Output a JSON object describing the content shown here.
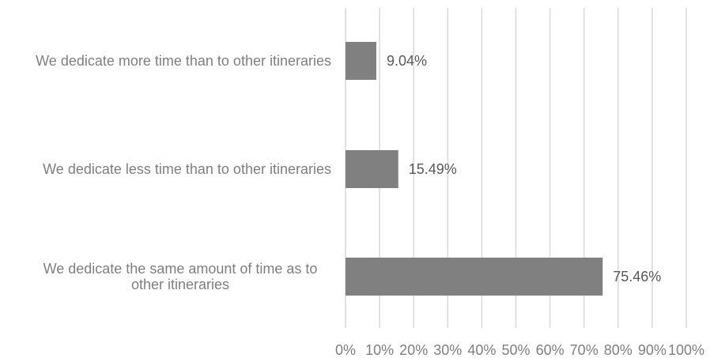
{
  "chart_data": {
    "type": "bar",
    "orientation": "horizontal",
    "categories": [
      "We dedicate more time than to other itineraries",
      "We dedicate less time than to other itineraries",
      "We dedicate the same amount of time as to other itineraries"
    ],
    "category_lines": [
      [
        "We dedicate more time than to other itineraries"
      ],
      [
        "We dedicate less time than to other itineraries"
      ],
      [
        "We dedicate the same amount of time as to",
        "other itineraries"
      ]
    ],
    "values": [
      9.04,
      15.49,
      75.46
    ],
    "data_labels": [
      "9.04%",
      "15.49%",
      "75.46%"
    ],
    "xlim": [
      0,
      100
    ],
    "xticks": [
      0,
      10,
      20,
      30,
      40,
      50,
      60,
      70,
      80,
      90,
      100
    ],
    "xtick_labels": [
      "0%",
      "10%",
      "20%",
      "30%",
      "40%",
      "50%",
      "60%",
      "70%",
      "80%",
      "90%",
      "100%"
    ],
    "grid": true,
    "legend": "none",
    "title": "",
    "xlabel": "",
    "ylabel": "",
    "colors": {
      "bar": "#808080",
      "gridline": "#d9d9d9",
      "axis_text": "#7f7f7f",
      "data_label_text": "#595959"
    }
  }
}
